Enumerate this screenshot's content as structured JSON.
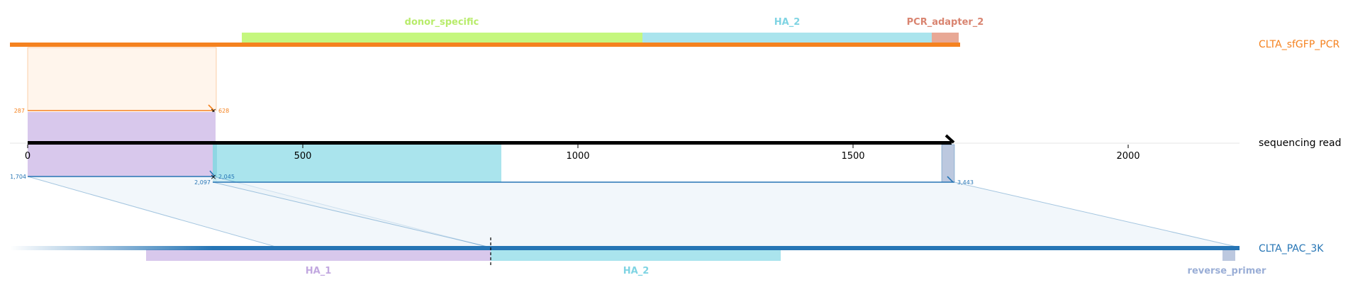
{
  "target": {
    "name": "CLTA_sfGFP_PCR",
    "color": "#f5821f",
    "features": [
      {
        "label": "donor_specific",
        "color": "#c5f77e",
        "label_color": "#b8ec6b"
      },
      {
        "label": "HA_2",
        "color": "#aae4ed",
        "label_color": "#7fd4e3"
      },
      {
        "label": "PCR_adapter_2",
        "color": "#e8a895",
        "label_color": "#d98470"
      }
    ]
  },
  "read": {
    "name": "sequencing read",
    "color": "#000000",
    "axis_ticks": [
      "0",
      "500",
      "1000",
      "1500",
      "2000"
    ],
    "tick_values": [
      0,
      500,
      1000,
      1500,
      2000
    ]
  },
  "reference": {
    "name": "CLTA_PAC_3K",
    "color": "#2675b5",
    "features": [
      {
        "label": "HA_1",
        "color": "#d8c8ec",
        "label_color": "#c2a8e0"
      },
      {
        "label": "HA_2",
        "color": "#aae4ed",
        "label_color": "#7fd4e3"
      },
      {
        "label": "reverse_primer",
        "color": "#bcc8df",
        "label_color": "#9aaed6"
      }
    ]
  },
  "alignments": [
    {
      "target": "target",
      "ref_start": "287",
      "ref_end": "628",
      "color": "#f5821f"
    },
    {
      "target": "reference",
      "ref_start": "1,704",
      "ref_end": "2,045",
      "color": "#2675b5"
    },
    {
      "target": "reference",
      "ref_start": "2,097",
      "ref_end": "3,443",
      "color": "#2675b5"
    }
  ]
}
